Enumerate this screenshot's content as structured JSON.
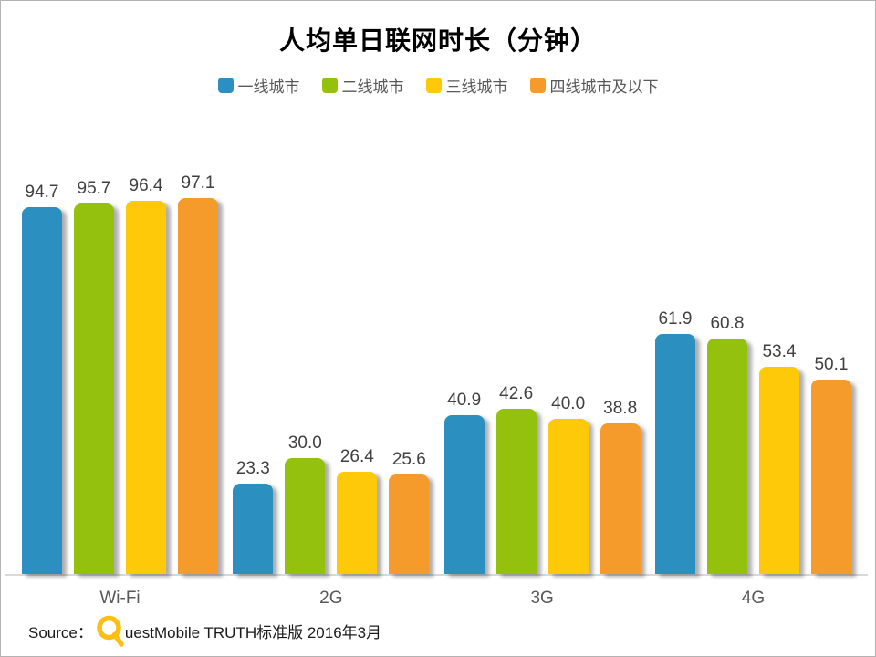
{
  "title": "人均单日联网时长（分钟）",
  "legend": [
    {
      "label": "一线城市",
      "color": "#2b90c0"
    },
    {
      "label": "二线城市",
      "color": "#94c10d"
    },
    {
      "label": "三线城市",
      "color": "#fec908"
    },
    {
      "label": "四线城市及以下",
      "color": "#f49b2b"
    }
  ],
  "chart_data": {
    "type": "bar",
    "title": "人均单日联网时长（分钟）",
    "categories": [
      "Wi-Fi",
      "2G",
      "3G",
      "4G"
    ],
    "series": [
      {
        "name": "一线城市",
        "color": "#2b90c0",
        "values": [
          94.7,
          23.3,
          40.9,
          61.9
        ]
      },
      {
        "name": "二线城市",
        "color": "#94c10d",
        "values": [
          95.7,
          30.0,
          42.6,
          60.8
        ]
      },
      {
        "name": "三线城市",
        "color": "#fec908",
        "values": [
          96.4,
          26.4,
          40.0,
          53.4
        ]
      },
      {
        "name": "四线城市及以下",
        "color": "#f49b2b",
        "values": [
          97.1,
          25.6,
          38.8,
          50.1
        ]
      }
    ],
    "xlabel": "",
    "ylabel": "",
    "ylim": [
      0,
      115
    ],
    "grid": false,
    "value_labels": true,
    "legend_position": "top",
    "value_label_color": "#404040",
    "axis_line_color": "#d9d9d9"
  },
  "source": {
    "prefix": "Source：",
    "logo": "questmobile-q",
    "logo_color": "#fcbe10",
    "text": "uestMobile TRUTH标准版 2016年3月"
  }
}
